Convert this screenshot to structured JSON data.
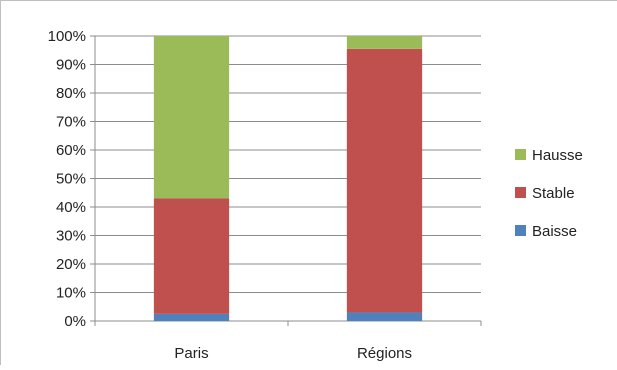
{
  "chart_data": {
    "type": "bar",
    "stacked": true,
    "percent": true,
    "categories": [
      "Paris",
      "Régions"
    ],
    "series": [
      {
        "name": "Baisse",
        "values": [
          2.5,
          3
        ],
        "color": "#4f81bd"
      },
      {
        "name": "Stable",
        "values": [
          40.5,
          92.5
        ],
        "color": "#c0504d"
      },
      {
        "name": "Hausse",
        "values": [
          57,
          4.5
        ],
        "color": "#9bbb59"
      }
    ],
    "yticks": [
      "0%",
      "10%",
      "20%",
      "30%",
      "40%",
      "50%",
      "60%",
      "70%",
      "80%",
      "90%",
      "100%"
    ],
    "ylim": [
      0,
      100
    ],
    "grid": true,
    "legend": "right",
    "title": "",
    "xlabel": "",
    "ylabel": ""
  }
}
